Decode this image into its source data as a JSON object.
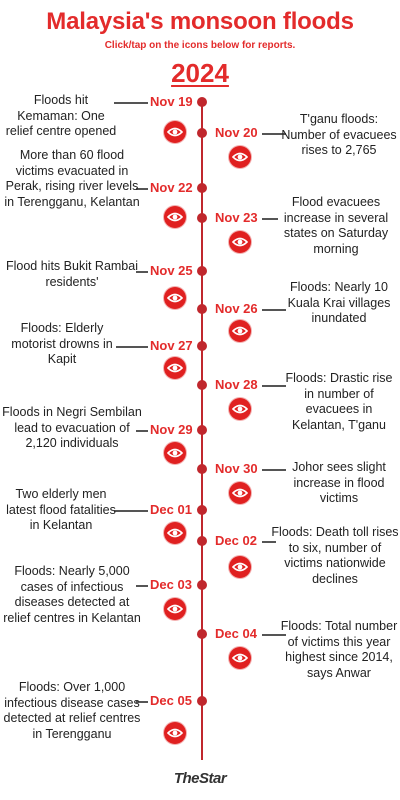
{
  "header": {
    "title": "Malaysia's monsoon floods",
    "subtitle": "Click/tap on the icons below for reports.",
    "year": "2024"
  },
  "events": [
    {
      "date": "Nov 19",
      "text": "Floods hit Kemaman: One relief centre opened",
      "side": "left",
      "icon": "eye-icon"
    },
    {
      "date": "Nov 20",
      "text": "T'ganu floods: Number of evacuees rises to 2,765",
      "side": "right",
      "icon": "eye-icon"
    },
    {
      "date": "Nov 22",
      "text": "More than 60 flood victims evacuated in Perak, rising river levels in Terengganu, Kelantan",
      "side": "left",
      "icon": "eye-icon"
    },
    {
      "date": "Nov 23",
      "text": "Flood evacuees increase in several states on Saturday morning",
      "side": "right",
      "icon": "eye-icon"
    },
    {
      "date": "Nov 25",
      "text": "Flood hits Bukit Rambai residents'",
      "side": "left",
      "icon": "eye-icon"
    },
    {
      "date": "Nov 26",
      "text": "Floods: Nearly 10 Kuala Krai villages inundated",
      "side": "right",
      "icon": "eye-icon"
    },
    {
      "date": "Nov 27",
      "text": "Floods: Elderly motorist drowns in Kapit",
      "side": "left",
      "icon": "eye-icon"
    },
    {
      "date": "Nov 28",
      "text": "Floods: Drastic rise in number of evacuees in Kelantan, T'ganu",
      "side": "right",
      "icon": "eye-icon"
    },
    {
      "date": "Nov 29",
      "text": "Floods in Negri Sembilan lead to evacuation of 2,120 individuals",
      "side": "left",
      "icon": "eye-icon"
    },
    {
      "date": "Nov 30",
      "text": "Johor sees slight increase in flood victims",
      "side": "right",
      "icon": "eye-icon"
    },
    {
      "date": "Dec 01",
      "text": "Two elderly men latest flood fatalities in Kelantan",
      "side": "left",
      "icon": "eye-icon"
    },
    {
      "date": "Dec 02",
      "text": "Floods: Death toll rises to six, number of victims nationwide declines",
      "side": "right",
      "icon": "eye-icon"
    },
    {
      "date": "Dec 03",
      "text": "Floods: Nearly 5,000 cases of infectious diseases detected at relief centres in Kelantan",
      "side": "left",
      "icon": "eye-icon"
    },
    {
      "date": "Dec 04",
      "text": "Floods: Total number of victims this year highest since 2014, says Anwar",
      "side": "right",
      "icon": "eye-icon"
    },
    {
      "date": "Dec 05",
      "text": "Floods: Over 1,000 infectious disease cases detected at relief centres in Terengganu",
      "side": "left",
      "icon": "eye-icon"
    }
  ],
  "footer": {
    "logo": "TheStar"
  },
  "colors": {
    "accent": "#e32b2b",
    "line": "#c0272d"
  }
}
